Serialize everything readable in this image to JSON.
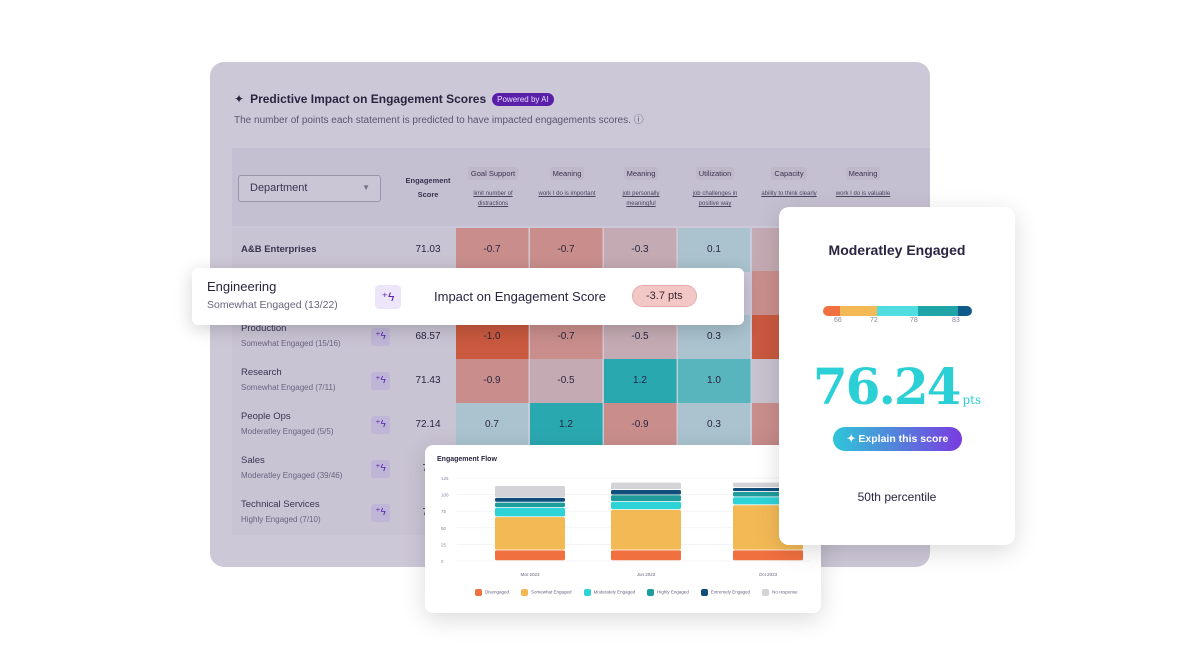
{
  "header": {
    "title": "Predictive Impact on Engagement Scores",
    "badge": "Powered by AI",
    "subtitle": "The number of points each statement is predicted to have impacted engagements scores."
  },
  "table": {
    "filter": "Department",
    "score_header_1": "Engagement",
    "score_header_2": "Score",
    "columns": [
      {
        "category": "Goal Support",
        "statement": "limit number of distractions"
      },
      {
        "category": "Meaning",
        "statement": "work I do is important"
      },
      {
        "category": "Meaning",
        "statement": "job personally meaningful"
      },
      {
        "category": "Utilization",
        "statement": "job challenges in positive way"
      },
      {
        "category": "Capacity",
        "statement": "ability to think clearly"
      },
      {
        "category": "Meaning",
        "statement": "work I do is valuable"
      }
    ],
    "rows": [
      {
        "name": "A&B Enterprises",
        "status": "",
        "score": "71.03",
        "values": [
          "-0.7",
          "-0.7",
          "-0.3",
          "0.1"
        ]
      },
      {
        "name": "Production",
        "status": "Somewhat Engaged (15/16)",
        "score": "68.57",
        "values": [
          "-1.0",
          "-0.7",
          "-0.5",
          "0.3"
        ]
      },
      {
        "name": "Research",
        "status": "Somewhat Engaged (7/11)",
        "score": "71.43",
        "values": [
          "-0.9",
          "-0.5",
          "1.2",
          "1.0"
        ]
      },
      {
        "name": "People Ops",
        "status": "Moderatley Engaged (5/5)",
        "score": "72.14",
        "values": [
          "0.7",
          "1.2",
          "-0.9",
          "0.3"
        ]
      },
      {
        "name": "Sales",
        "status": "Moderatley Engaged (39/46)",
        "score": "75",
        "values": []
      },
      {
        "name": "Technical Services",
        "status": "Highly Engaged (7/10)",
        "score": "78",
        "values": []
      }
    ]
  },
  "popover": {
    "name": "Engineering",
    "status": "Somewhat Engaged (13/22)",
    "label": "Impact on Engagement Score",
    "value": "-3.7 pts"
  },
  "score_card": {
    "title": "Moderatley Engaged",
    "ticks": [
      "66",
      "72",
      "78",
      "83"
    ],
    "score": "76.24",
    "unit": "pts",
    "button": "Explain this score",
    "percentile": "50th percentile"
  },
  "colors": {
    "negative": "#c9593f",
    "teal": "#2bcfd6",
    "purple": "#5a1fa8"
  },
  "chart_data": {
    "type": "bar",
    "stacked": true,
    "title": "Engagement Flow",
    "categories": [
      "Mar 2023",
      "Jun 2023",
      "Oct 2023"
    ],
    "ylim": [
      0,
      125
    ],
    "yticks": [
      "0",
      "25",
      "50",
      "75",
      "100",
      "125"
    ],
    "grid": true,
    "legend": "bottom",
    "series": [
      {
        "name": "Disengaged",
        "color": "#f0703f",
        "values": [
          16,
          16,
          16
        ]
      },
      {
        "name": "Somewhat Engaged",
        "color": "#f3b955",
        "values": [
          50,
          61,
          68
        ]
      },
      {
        "name": "Moderately Engaged",
        "color": "#2ed3d8",
        "values": [
          14,
          12,
          12
        ]
      },
      {
        "name": "Highly Engaged",
        "color": "#1f9c9c",
        "values": [
          8,
          10,
          8
        ]
      },
      {
        "name": "Extremely Engaged",
        "color": "#0f4f7a",
        "values": [
          7,
          8,
          6
        ]
      },
      {
        "name": "No response",
        "color": "#d3d3d8",
        "values": [
          18,
          11,
          8
        ]
      }
    ]
  }
}
